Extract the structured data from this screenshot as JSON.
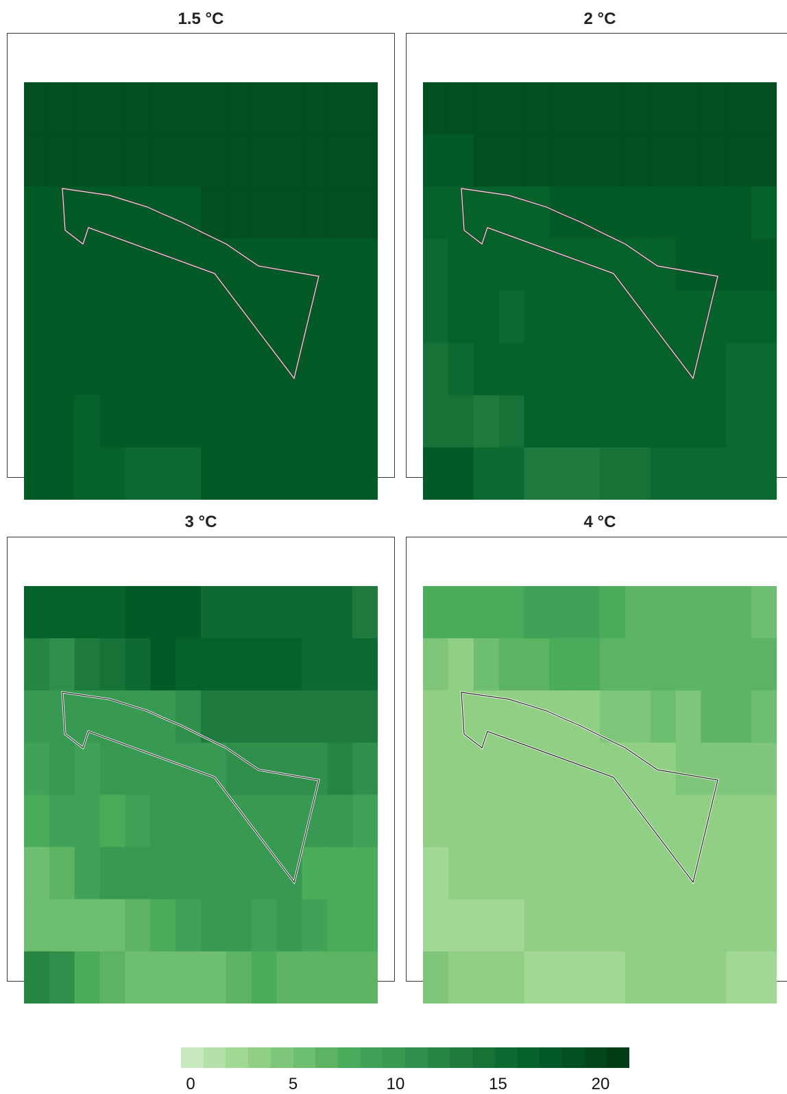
{
  "panels": [
    {
      "title": "1.5 °C",
      "grid": [
        [
          20,
          20,
          20,
          20,
          20,
          20,
          20,
          20,
          20,
          20,
          20,
          20,
          20,
          20
        ],
        [
          20,
          20,
          20,
          20,
          20,
          20,
          20,
          20,
          20,
          20,
          20,
          20,
          20,
          20
        ],
        [
          19,
          19,
          19,
          19,
          19,
          19,
          19,
          20,
          20,
          20,
          20,
          20,
          20,
          20
        ],
        [
          18,
          19,
          18,
          19,
          19,
          19,
          19,
          19,
          19,
          19,
          19,
          19,
          19,
          19
        ],
        [
          18,
          18,
          18,
          18,
          18,
          19,
          19,
          18,
          19,
          19,
          19,
          19,
          19,
          18
        ],
        [
          18,
          18,
          18,
          19,
          19,
          19,
          19,
          19,
          19,
          19,
          19,
          18,
          18,
          18
        ],
        [
          18,
          18,
          17,
          18,
          18,
          18,
          18,
          19,
          19,
          18,
          19,
          18,
          18,
          18
        ],
        [
          19,
          19,
          17,
          17,
          16,
          16,
          16,
          18,
          18,
          18,
          18,
          18,
          18,
          18
        ]
      ]
    },
    {
      "title": "2 °C",
      "grid": [
        [
          20,
          20,
          20,
          20,
          20,
          20,
          20,
          20,
          20,
          20,
          20,
          20,
          20,
          20
        ],
        [
          18,
          18,
          20,
          20,
          20,
          20,
          20,
          20,
          20,
          20,
          20,
          20,
          20,
          20
        ],
        [
          17,
          17,
          17,
          17,
          17,
          18,
          18,
          18,
          18,
          18,
          19,
          19,
          19,
          17
        ],
        [
          16,
          17,
          17,
          17,
          17,
          17,
          17,
          17,
          17,
          17,
          18,
          18,
          18,
          18
        ],
        [
          16,
          17,
          17,
          16,
          17,
          17,
          17,
          17,
          17,
          17,
          17,
          17,
          17,
          17
        ],
        [
          15,
          16,
          17,
          17,
          17,
          17,
          17,
          17,
          17,
          17,
          17,
          17,
          16,
          16
        ],
        [
          15,
          15,
          14,
          15,
          17,
          17,
          17,
          17,
          17,
          17,
          17,
          17,
          16,
          16
        ],
        [
          19,
          19,
          16,
          16,
          14,
          14,
          14,
          15,
          15,
          16,
          16,
          16,
          16,
          16
        ]
      ]
    },
    {
      "title": "3 °C",
      "grid": [
        [
          17,
          17,
          17,
          17,
          18,
          18,
          18,
          16,
          16,
          16,
          16,
          16,
          16,
          14
        ],
        [
          13,
          12,
          14,
          15,
          16,
          18,
          17,
          17,
          17,
          17,
          17,
          16,
          16,
          16
        ],
        [
          10,
          10,
          10,
          10,
          10,
          10,
          12,
          14,
          14,
          14,
          14,
          14,
          14,
          14
        ],
        [
          9,
          10,
          9,
          10,
          10,
          10,
          10,
          10,
          11,
          11,
          11,
          11,
          13,
          12
        ],
        [
          8,
          9,
          9,
          8,
          9,
          10,
          10,
          10,
          10,
          10,
          10,
          10,
          10,
          9
        ],
        [
          6,
          7,
          9,
          10,
          10,
          10,
          10,
          10,
          10,
          10,
          10,
          8,
          8,
          8
        ],
        [
          6,
          6,
          6,
          6,
          7,
          8,
          9,
          10,
          10,
          9,
          10,
          9,
          8,
          8
        ],
        [
          13,
          12,
          8,
          7,
          6,
          6,
          6,
          6,
          7,
          8,
          7,
          7,
          7,
          7
        ]
      ]
    },
    {
      "title": "4 °C",
      "grid": [
        [
          8,
          8,
          8,
          8,
          9,
          9,
          9,
          8,
          7,
          7,
          7,
          7,
          7,
          6
        ],
        [
          5,
          4,
          6,
          7,
          7,
          8,
          8,
          7,
          7,
          7,
          7,
          7,
          7,
          7
        ],
        [
          4,
          4,
          4,
          4,
          4,
          3,
          4,
          5,
          5,
          6,
          5,
          7,
          7,
          6
        ],
        [
          4,
          4,
          4,
          4,
          4,
          4,
          4,
          4,
          4,
          4,
          5,
          5,
          5,
          5
        ],
        [
          3,
          4,
          4,
          4,
          4,
          4,
          4,
          4,
          4,
          4,
          4,
          4,
          4,
          4
        ],
        [
          2,
          3,
          4,
          4,
          4,
          4,
          4,
          4,
          4,
          4,
          4,
          4,
          4,
          4
        ],
        [
          2,
          2,
          2,
          2,
          3,
          4,
          4,
          4,
          4,
          4,
          4,
          4,
          4,
          4
        ],
        [
          5,
          4,
          4,
          3,
          2,
          2,
          2,
          2,
          3,
          4,
          3,
          3,
          2,
          2
        ]
      ]
    }
  ],
  "legend": {
    "min": 0,
    "max": 22,
    "ticks": [
      "0",
      "5",
      "10",
      "15",
      "20"
    ],
    "colors": [
      "#c7e8bf",
      "#b5e0aa",
      "#a2d896",
      "#91cf85",
      "#7fc67a",
      "#6dbe6f",
      "#5cb462",
      "#4aab5a",
      "#3fa257",
      "#379952",
      "#2f8f4b",
      "#278543",
      "#1e7b3d",
      "#167237",
      "#0d6a31",
      "#06622b",
      "#035a26",
      "#024f21",
      "#01461c",
      "#003d17"
    ]
  },
  "outline_color_dark_panels": "#f5dede",
  "outline_color_light_panels": "#222222"
}
